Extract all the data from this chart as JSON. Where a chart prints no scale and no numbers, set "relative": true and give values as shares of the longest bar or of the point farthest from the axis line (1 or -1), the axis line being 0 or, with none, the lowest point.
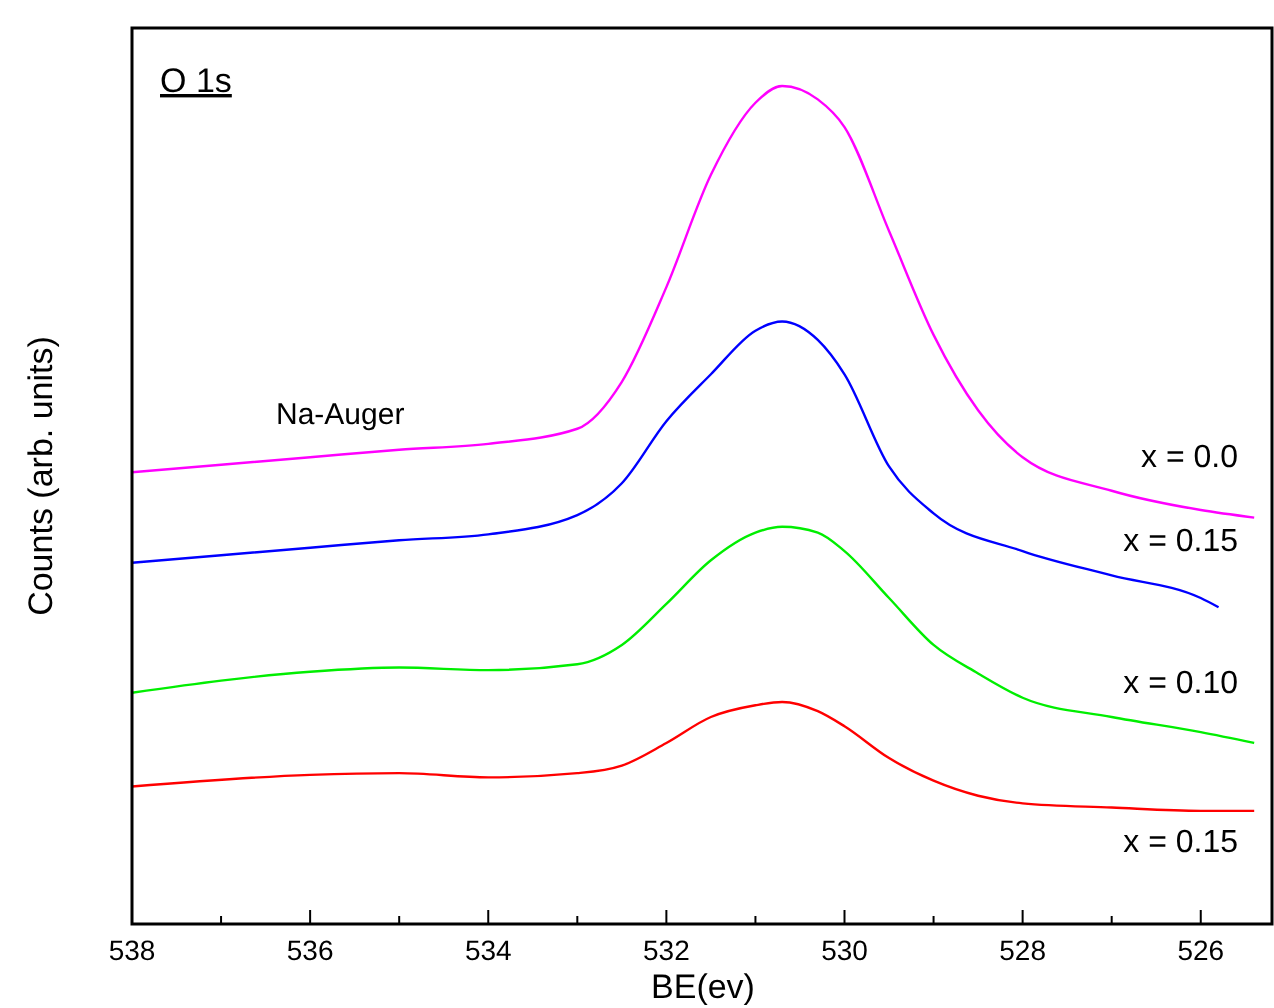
{
  "chart_data": {
    "type": "line",
    "xlabel": "BE(ev)",
    "ylabel": "Counts (arb. units)",
    "relative": true,
    "xlim": [
      538,
      525.2
    ],
    "xticks": [
      538,
      {
        "value": 537,
        "label": null
      },
      536,
      {
        "value": 535,
        "label": null
      },
      534,
      {
        "value": 533,
        "label": null
      },
      532,
      {
        "value": 531,
        "label": null
      },
      530,
      {
        "value": 529,
        "label": null
      },
      528,
      {
        "value": 527,
        "label": null
      },
      526
    ],
    "x": [
      538,
      536,
      535,
      534,
      533,
      532.5,
      532,
      531.5,
      531,
      530.7,
      530.3,
      530,
      529.5,
      529,
      528.5,
      528,
      527,
      526,
      525.4
    ],
    "series": [
      {
        "name": "x = 0.0",
        "color": "#ff00ff",
        "values": [
          0.539,
          0.557,
          0.566,
          0.573,
          0.591,
          0.647,
          0.76,
          0.894,
          0.98,
          1.0,
          0.984,
          0.951,
          0.827,
          0.703,
          0.613,
          0.557,
          0.517,
          0.494,
          0.485
        ]
      },
      {
        "name": "x = 0.15",
        "color": "#0000ff",
        "x": [
          538,
          536,
          535,
          534,
          533,
          532.5,
          532,
          531.5,
          531,
          530.7,
          530.3,
          530,
          529.5,
          529,
          528,
          527,
          526,
          525.8
        ],
        "values": [
          0.431,
          0.449,
          0.458,
          0.465,
          0.488,
          0.526,
          0.6,
          0.656,
          0.708,
          0.719,
          0.697,
          0.656,
          0.546,
          0.49,
          0.445,
          0.416,
          0.389,
          0.378
        ]
      },
      {
        "name": "x = 0.10",
        "color": "#00ee00",
        "values": [
          0.276,
          0.301,
          0.306,
          0.303,
          0.31,
          0.333,
          0.382,
          0.434,
          0.467,
          0.474,
          0.467,
          0.445,
          0.389,
          0.333,
          0.299,
          0.27,
          0.247,
          0.229,
          0.216
        ]
      },
      {
        "name": "x = 0.15",
        "color": "#ff0000",
        "values": [
          0.164,
          0.178,
          0.18,
          0.175,
          0.18,
          0.189,
          0.216,
          0.247,
          0.261,
          0.265,
          0.254,
          0.236,
          0.198,
          0.171,
          0.153,
          0.144,
          0.139,
          0.135,
          0.135
        ]
      }
    ],
    "annotations": [
      "O 1s",
      "Na-Auger"
    ],
    "grid": false,
    "marker": "none",
    "line_style": "solid"
  }
}
